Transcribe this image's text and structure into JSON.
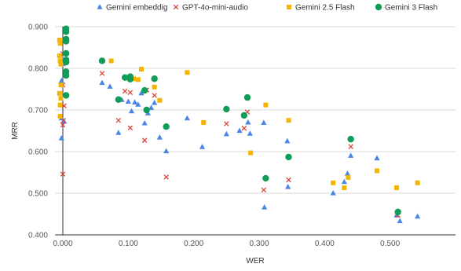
{
  "chart_data": {
    "type": "scatter",
    "xlabel": "WER",
    "ylabel": "MRR",
    "xlim": [
      -0.012,
      0.6
    ],
    "ylim": [
      0.4,
      0.9
    ],
    "xticks": [
      0.0,
      0.1,
      0.2,
      0.3,
      0.4,
      0.5
    ],
    "xtick_labels": [
      "0.000",
      "0.100",
      "0.200",
      "0.300",
      "0.400",
      "0.500"
    ],
    "yticks": [
      0.4,
      0.5,
      0.6,
      0.7,
      0.8,
      0.9
    ],
    "ytick_labels": [
      "0.400",
      "0.500",
      "0.600",
      "0.700",
      "0.800",
      "0.900"
    ],
    "grid": "horizontal",
    "legend_position": "top",
    "series": [
      {
        "name": "Gemini embeddig",
        "marker": "triangle",
        "color": "#4a86e8",
        "points": [
          [
            -0.002,
            0.632
          ],
          [
            -0.002,
            0.68
          ],
          [
            -0.002,
            0.77
          ],
          [
            0.0,
            0.82
          ],
          [
            0.0,
            0.81
          ],
          [
            0.002,
            0.672
          ],
          [
            0.06,
            0.765
          ],
          [
            0.072,
            0.756
          ],
          [
            0.085,
            0.645
          ],
          [
            0.09,
            0.724
          ],
          [
            0.1,
            0.72
          ],
          [
            0.105,
            0.697
          ],
          [
            0.11,
            0.718
          ],
          [
            0.115,
            0.713
          ],
          [
            0.12,
            0.74
          ],
          [
            0.125,
            0.668
          ],
          [
            0.13,
            0.692
          ],
          [
            0.135,
            0.705
          ],
          [
            0.14,
            0.717
          ],
          [
            0.148,
            0.634
          ],
          [
            0.158,
            0.601
          ],
          [
            0.19,
            0.68
          ],
          [
            0.213,
            0.611
          ],
          [
            0.25,
            0.642
          ],
          [
            0.27,
            0.65
          ],
          [
            0.283,
            0.67
          ],
          [
            0.286,
            0.643
          ],
          [
            0.307,
            0.669
          ],
          [
            0.308,
            0.466
          ],
          [
            0.343,
            0.625
          ],
          [
            0.344,
            0.515
          ],
          [
            0.413,
            0.5
          ],
          [
            0.43,
            0.527
          ],
          [
            0.435,
            0.547
          ],
          [
            0.44,
            0.59
          ],
          [
            0.48,
            0.584
          ],
          [
            0.51,
            0.447
          ],
          [
            0.515,
            0.433
          ],
          [
            0.542,
            0.444
          ]
        ]
      },
      {
        "name": "GPT-4o-mini-audio",
        "marker": "x",
        "color": "#db4437",
        "points": [
          [
            0.0,
            0.546
          ],
          [
            0.0,
            0.664
          ],
          [
            0.001,
            0.675
          ],
          [
            0.002,
            0.71
          ],
          [
            0.0,
            0.76
          ],
          [
            0.0,
            0.835
          ],
          [
            0.06,
            0.788
          ],
          [
            0.085,
            0.675
          ],
          [
            0.095,
            0.745
          ],
          [
            0.103,
            0.742
          ],
          [
            0.103,
            0.657
          ],
          [
            0.125,
            0.627
          ],
          [
            0.128,
            0.748
          ],
          [
            0.14,
            0.735
          ],
          [
            0.158,
            0.539
          ],
          [
            0.25,
            0.667
          ],
          [
            0.277,
            0.656
          ],
          [
            0.282,
            0.695
          ],
          [
            0.307,
            0.508
          ],
          [
            0.345,
            0.532
          ],
          [
            0.44,
            0.612
          ],
          [
            0.512,
            0.447
          ]
        ]
      },
      {
        "name": "Gemini 2.5 Flash",
        "marker": "square",
        "color": "#f4b400",
        "points": [
          [
            -0.005,
            0.868
          ],
          [
            -0.004,
            0.86
          ],
          [
            -0.005,
            0.83
          ],
          [
            -0.004,
            0.818
          ],
          [
            -0.003,
            0.81
          ],
          [
            -0.003,
            0.76
          ],
          [
            -0.005,
            0.74
          ],
          [
            -0.003,
            0.728
          ],
          [
            -0.004,
            0.712
          ],
          [
            -0.004,
            0.685
          ],
          [
            0.074,
            0.818
          ],
          [
            0.108,
            0.775
          ],
          [
            0.115,
            0.773
          ],
          [
            0.12,
            0.798
          ],
          [
            0.14,
            0.755
          ],
          [
            0.148,
            0.723
          ],
          [
            0.19,
            0.79
          ],
          [
            0.215,
            0.67
          ],
          [
            0.287,
            0.597
          ],
          [
            0.31,
            0.712
          ],
          [
            0.345,
            0.675
          ],
          [
            0.413,
            0.525
          ],
          [
            0.43,
            0.513
          ],
          [
            0.436,
            0.538
          ],
          [
            0.48,
            0.554
          ],
          [
            0.51,
            0.513
          ],
          [
            0.542,
            0.525
          ]
        ]
      },
      {
        "name": "Gemini 3 Flash",
        "marker": "circle",
        "color": "#0f9d58",
        "points": [
          [
            0.005,
            0.895
          ],
          [
            0.005,
            0.888
          ],
          [
            0.005,
            0.87
          ],
          [
            0.005,
            0.865
          ],
          [
            0.005,
            0.836
          ],
          [
            0.005,
            0.82
          ],
          [
            0.005,
            0.815
          ],
          [
            0.005,
            0.792
          ],
          [
            0.005,
            0.783
          ],
          [
            0.005,
            0.735
          ],
          [
            0.06,
            0.818
          ],
          [
            0.085,
            0.725
          ],
          [
            0.095,
            0.778
          ],
          [
            0.103,
            0.78
          ],
          [
            0.103,
            0.774
          ],
          [
            0.125,
            0.747
          ],
          [
            0.128,
            0.7
          ],
          [
            0.14,
            0.775
          ],
          [
            0.158,
            0.66
          ],
          [
            0.25,
            0.702
          ],
          [
            0.277,
            0.687
          ],
          [
            0.282,
            0.73
          ],
          [
            0.31,
            0.536
          ],
          [
            0.345,
            0.587
          ],
          [
            0.44,
            0.63
          ],
          [
            0.512,
            0.455
          ]
        ]
      }
    ]
  }
}
